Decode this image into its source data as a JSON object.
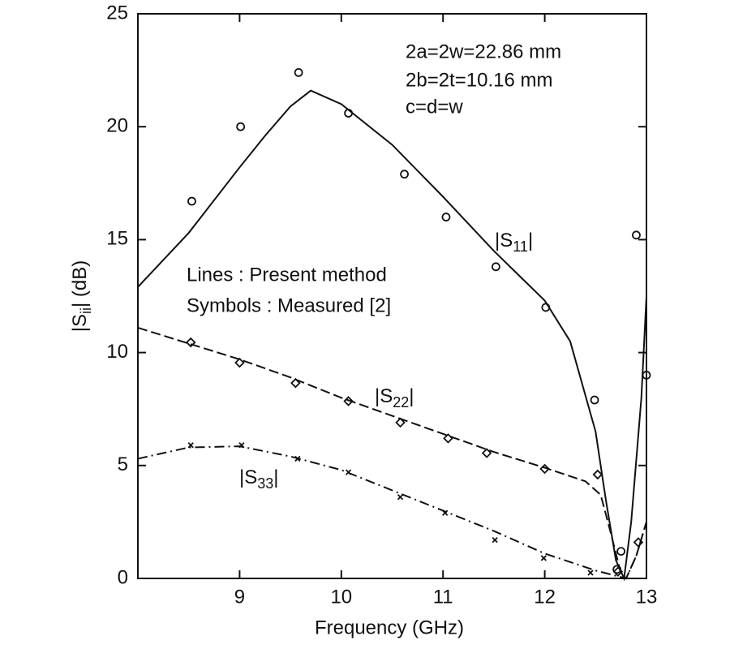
{
  "chart_data": {
    "type": "line",
    "xlabel": "Frequency (GHz)",
    "ylabel": "|Sii| (dB)",
    "xlim": [
      8,
      13
    ],
    "xticks": [
      9,
      10,
      11,
      12,
      13
    ],
    "ylim": [
      0,
      25
    ],
    "yticks": [
      0,
      5,
      10,
      15,
      20,
      25
    ],
    "annotations": [
      "2a=2w=22.86 mm",
      "2b=2t=10.16 mm",
      "c=d=w",
      "Lines : Present method",
      "Symbols : Measured [2]"
    ],
    "series": [
      {
        "name": "|S11|",
        "color": "#111111",
        "style": "solid",
        "x": [
          8.0,
          8.5,
          9.0,
          9.25,
          9.5,
          9.7,
          10.0,
          10.5,
          11.0,
          11.5,
          12.0,
          12.25,
          12.5,
          12.6,
          12.7,
          12.78,
          12.85,
          12.95,
          13.0
        ],
        "values": [
          12.9,
          15.3,
          18.2,
          19.6,
          20.9,
          21.6,
          21.0,
          19.2,
          16.9,
          14.5,
          12.3,
          10.5,
          6.5,
          3.5,
          0.8,
          0,
          2.5,
          8.0,
          12.5
        ]
      },
      {
        "name": "|S22|",
        "color": "#111111",
        "style": "dashed",
        "x": [
          8.0,
          8.5,
          9.0,
          9.5,
          10.0,
          10.5,
          11.0,
          11.5,
          12.0,
          12.4,
          12.55,
          12.65,
          12.75,
          12.8,
          12.9,
          13.0
        ],
        "values": [
          11.1,
          10.4,
          9.7,
          8.9,
          8.0,
          7.2,
          6.4,
          5.6,
          4.9,
          4.3,
          3.7,
          2.0,
          0.2,
          0,
          1.0,
          2.5
        ]
      },
      {
        "name": "|S33|",
        "color": "#111111",
        "style": "dashdot",
        "x": [
          8.0,
          8.5,
          9.0,
          9.5,
          10.0,
          10.5,
          11.0,
          11.5,
          12.0,
          12.5,
          12.8,
          12.9,
          13.0
        ],
        "values": [
          5.3,
          5.8,
          5.85,
          5.4,
          4.8,
          3.9,
          3.0,
          2.1,
          1.1,
          0.35,
          0,
          1.0,
          2.5
        ]
      },
      {
        "color": "#111111",
        "marker": "circle",
        "x": [
          8.53,
          9.01,
          9.58,
          10.07,
          10.62,
          11.03,
          11.52,
          12.01,
          12.49,
          12.71,
          12.75,
          12.9,
          13.0
        ],
        "values": [
          16.7,
          20.0,
          22.4,
          20.6,
          17.9,
          16.0,
          13.8,
          12.0,
          7.9,
          0.4,
          1.2,
          15.2,
          9.0
        ]
      },
      {
        "color": "#111111",
        "marker": "diamond",
        "x": [
          8.52,
          9.0,
          9.55,
          10.07,
          10.58,
          11.05,
          11.43,
          12.0,
          12.52,
          12.72,
          12.92
        ],
        "values": [
          10.45,
          9.55,
          8.65,
          7.85,
          6.9,
          6.2,
          5.55,
          4.85,
          4.6,
          0.3,
          1.6
        ]
      },
      {
        "color": "#111111",
        "marker": "cross",
        "x": [
          8.52,
          9.02,
          9.57,
          10.07,
          10.58,
          11.02,
          11.51,
          11.99,
          12.45
        ],
        "values": [
          5.9,
          5.9,
          5.3,
          4.7,
          3.6,
          2.9,
          1.7,
          0.9,
          0.25
        ]
      }
    ]
  }
}
